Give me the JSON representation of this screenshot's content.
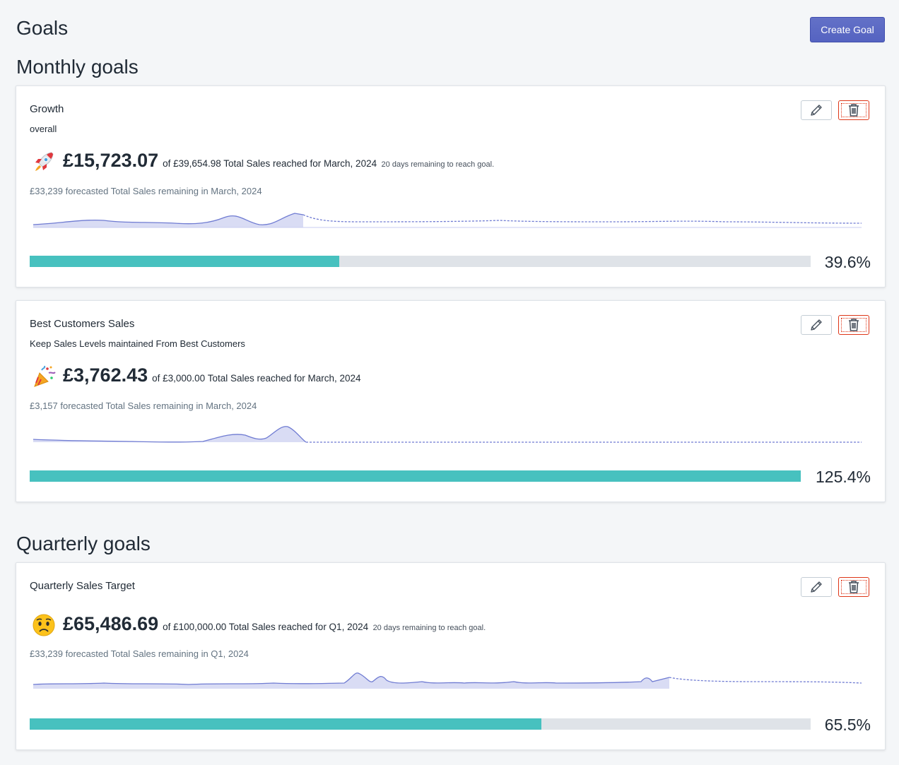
{
  "header": {
    "title": "Goals",
    "create_label": "Create Goal"
  },
  "sections": {
    "monthly": "Monthly goals",
    "quarterly": "Quarterly goals"
  },
  "goals": [
    {
      "title": "Growth",
      "subtitle": "overall",
      "emoji": "rocket-icon",
      "amount": "£15,723.07",
      "of_text": "of £39,654.98 Total Sales reached for March, 2024",
      "days_text": "20 days remaining to reach goal.",
      "forecast": "£33,239 forecasted Total Sales remaining in March, 2024",
      "progress": 0.396,
      "percent": "39.6%"
    },
    {
      "title": "Best Customers Sales",
      "subtitle": "Keep Sales Levels maintained From Best Customers",
      "emoji": "party-popper-icon",
      "amount": "£3,762.43",
      "of_text": "of £3,000.00 Total Sales reached for March, 2024",
      "days_text": "",
      "forecast": "£3,157 forecasted Total Sales remaining in March, 2024",
      "progress": 1.0,
      "percent": "125.4%"
    },
    {
      "title": "Quarterly Sales Target",
      "subtitle": "",
      "emoji": "worried-face-icon",
      "amount": "£65,486.69",
      "of_text": "of £100,000.00 Total Sales reached for Q1, 2024",
      "days_text": "20 days remaining to reach goal.",
      "forecast": "£33,239 forecasted Total Sales remaining in Q1, 2024",
      "progress": 0.655,
      "percent": "65.5%"
    }
  ],
  "colors": {
    "accent": "#5c6ac4",
    "progress": "#47c1bf",
    "track": "#dfe3e8",
    "danger": "#de3618"
  }
}
